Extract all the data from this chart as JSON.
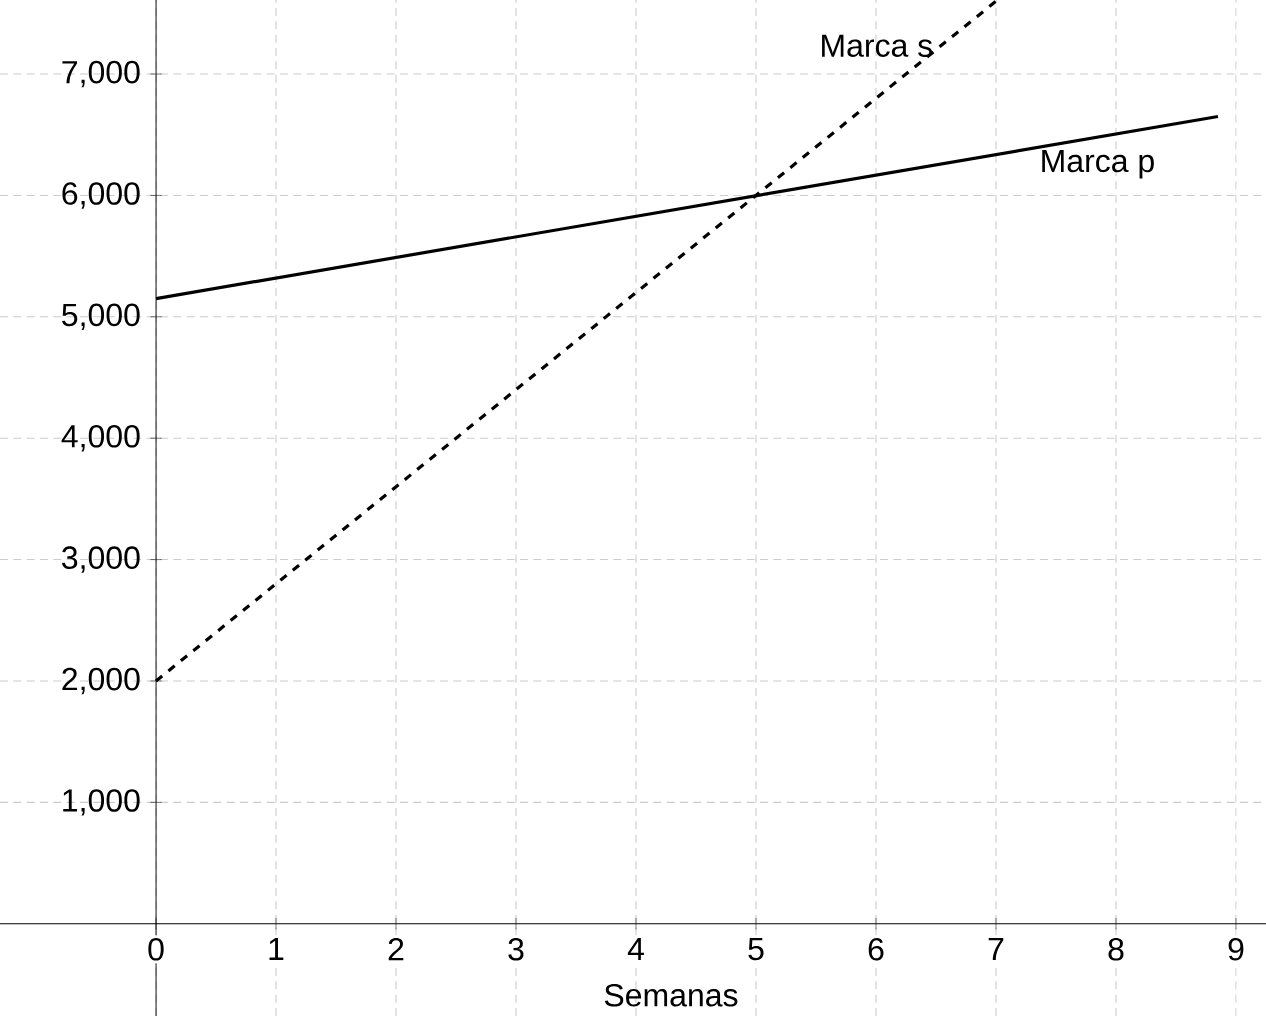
{
  "chart_data": {
    "type": "line",
    "xlabel": "Semanas",
    "series": [
      {
        "name": "Marca s",
        "color": "#000000",
        "line_style": "dashed",
        "x": [
          0,
          7
        ],
        "values": [
          2000,
          7600
        ]
      },
      {
        "name": "Marca p",
        "color": "#000000",
        "line_style": "solid",
        "x": [
          0,
          8.85
        ],
        "values": [
          5150,
          6650
        ]
      }
    ],
    "xlim": [
      -1.3,
      9.25
    ],
    "ylim": [
      -760,
      7610
    ],
    "xticks": [
      0,
      1,
      2,
      3,
      4,
      5,
      6,
      7,
      8,
      9
    ],
    "yticks": [
      {
        "value": 1000,
        "label": "1,000"
      },
      {
        "value": 2000,
        "label": "2,000"
      },
      {
        "value": 3000,
        "label": "3,000"
      },
      {
        "value": 4000,
        "label": "4,000"
      },
      {
        "value": 5000,
        "label": "5,000"
      },
      {
        "value": 6000,
        "label": "6,000"
      },
      {
        "value": 7000,
        "label": "7,000"
      }
    ],
    "grid": true,
    "marker": "none"
  }
}
